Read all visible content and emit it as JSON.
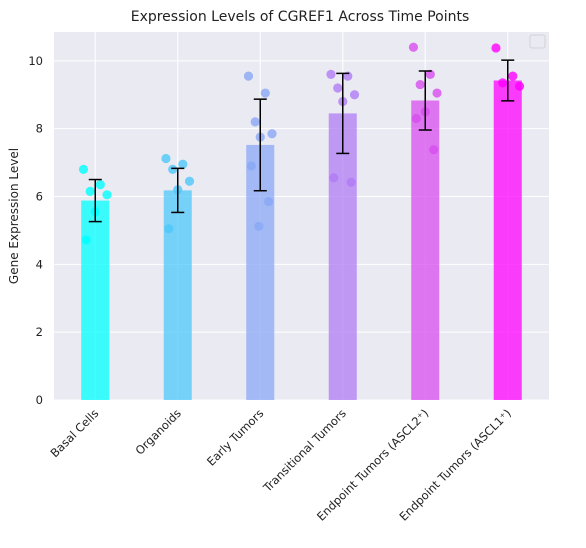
{
  "chart_data": {
    "type": "bar",
    "title": "Expression Levels of CGREF1 Across Time Points",
    "xlabel": "",
    "ylabel": "Gene Expression Level",
    "ylim": [
      0,
      10.85
    ],
    "yticks": [
      0,
      2,
      4,
      6,
      8,
      10
    ],
    "grid": true,
    "legend": "top-right",
    "colors": {
      "background": "#eaeaf2",
      "grid": "#ffffff",
      "error_bar": "#000000"
    },
    "categories": [
      "Basal Cells",
      "Organoids",
      "Early Tumors",
      "Transitional Tumors",
      "Endpoint Tumors (ASCL2⁺)",
      "Endpoint Tumors (ASCL1⁺)"
    ],
    "bar_colors": [
      "#00ffff",
      "#4dc8f9",
      "#8aa8f5",
      "#b07cf4",
      "#d84df0",
      "#ff00ff"
    ],
    "values": [
      5.88,
      6.18,
      7.52,
      8.45,
      8.83,
      9.42
    ],
    "errors": [
      0.62,
      0.65,
      1.35,
      1.18,
      0.87,
      0.6
    ],
    "points": [
      [
        6.8,
        6.35,
        6.15,
        6.05,
        5.55,
        4.72
      ],
      [
        7.12,
        6.95,
        6.8,
        6.45,
        6.2,
        5.05
      ],
      [
        9.55,
        9.05,
        8.2,
        7.85,
        7.75,
        6.9,
        5.85,
        5.12
      ],
      [
        9.6,
        9.55,
        9.2,
        9.0,
        8.8,
        6.55,
        6.42
      ],
      [
        10.4,
        9.6,
        9.3,
        9.05,
        8.5,
        8.3,
        7.38
      ],
      [
        10.38,
        9.55,
        9.35,
        9.25
      ]
    ]
  }
}
